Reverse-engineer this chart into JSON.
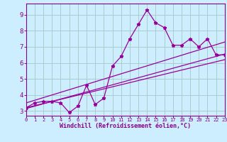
{
  "xlabel": "Windchill (Refroidissement éolien,°C)",
  "bg_color": "#cceeff",
  "line_color": "#990099",
  "grid_color": "#aacccc",
  "x_data": [
    0,
    1,
    2,
    3,
    4,
    5,
    6,
    7,
    8,
    9,
    10,
    11,
    12,
    13,
    14,
    15,
    16,
    17,
    18,
    19,
    20,
    21,
    22,
    23
  ],
  "y_data": [
    3.2,
    3.5,
    3.6,
    3.6,
    3.5,
    2.9,
    3.3,
    4.6,
    3.4,
    3.8,
    5.8,
    6.4,
    7.5,
    8.4,
    9.3,
    8.5,
    8.2,
    7.1,
    7.1,
    7.5,
    7.0,
    7.5,
    6.5,
    6.5
  ],
  "trend1_x": [
    0,
    23
  ],
  "trend1_y": [
    3.15,
    6.55
  ],
  "trend2_x": [
    0,
    23
  ],
  "trend2_y": [
    3.5,
    7.3
  ],
  "trend3_x": [
    0,
    23
  ],
  "trend3_y": [
    3.2,
    6.2
  ],
  "xlim": [
    0,
    23
  ],
  "ylim": [
    2.7,
    9.7
  ],
  "yticks": [
    3,
    4,
    5,
    6,
    7,
    8,
    9
  ],
  "xticks": [
    0,
    1,
    2,
    3,
    4,
    5,
    6,
    7,
    8,
    9,
    10,
    11,
    12,
    13,
    14,
    15,
    16,
    17,
    18,
    19,
    20,
    21,
    22,
    23
  ]
}
